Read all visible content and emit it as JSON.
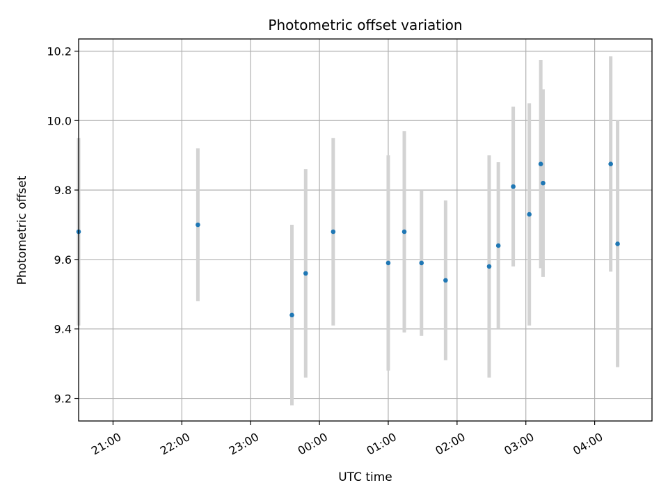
{
  "chart_data": {
    "type": "scatter",
    "title": "Photometric offset variation",
    "xlabel": "UTC time",
    "ylabel": "Photometric offset",
    "xlim": [
      "20:30",
      "04:50"
    ],
    "ylim": [
      9.135,
      10.235
    ],
    "grid": true,
    "x_ticks": [
      "21:00",
      "22:00",
      "23:00",
      "00:00",
      "01:00",
      "02:00",
      "03:00",
      "04:00"
    ],
    "y_ticks": [
      "9.2",
      "9.4",
      "9.6",
      "9.8",
      "10.0",
      "10.2"
    ],
    "point_color": "#1f77b4",
    "errorbar_color": "#d3d3d3",
    "points": [
      {
        "x": "20:30",
        "y": 9.68,
        "err": 0.27
      },
      {
        "x": "22:14",
        "y": 9.7,
        "err": 0.22
      },
      {
        "x": "23:36",
        "y": 9.44,
        "err": 0.26
      },
      {
        "x": "23:48",
        "y": 9.56,
        "err": 0.3
      },
      {
        "x": "00:12",
        "y": 9.68,
        "err": 0.27
      },
      {
        "x": "01:00",
        "y": 9.59,
        "err": 0.31
      },
      {
        "x": "01:14",
        "y": 9.68,
        "err": 0.29
      },
      {
        "x": "01:29",
        "y": 9.59,
        "err": 0.21
      },
      {
        "x": "01:50",
        "y": 9.54,
        "err": 0.23
      },
      {
        "x": "02:28",
        "y": 9.58,
        "err": 0.32
      },
      {
        "x": "02:36",
        "y": 9.64,
        "err": 0.24
      },
      {
        "x": "02:49",
        "y": 9.81,
        "err": 0.23
      },
      {
        "x": "03:03",
        "y": 9.73,
        "err": 0.32
      },
      {
        "x": "03:13",
        "y": 9.875,
        "err": 0.3
      },
      {
        "x": "03:15",
        "y": 9.82,
        "err": 0.27
      },
      {
        "x": "04:14",
        "y": 9.875,
        "err": 0.31
      },
      {
        "x": "04:20",
        "y": 9.645,
        "err": 0.355
      }
    ]
  }
}
